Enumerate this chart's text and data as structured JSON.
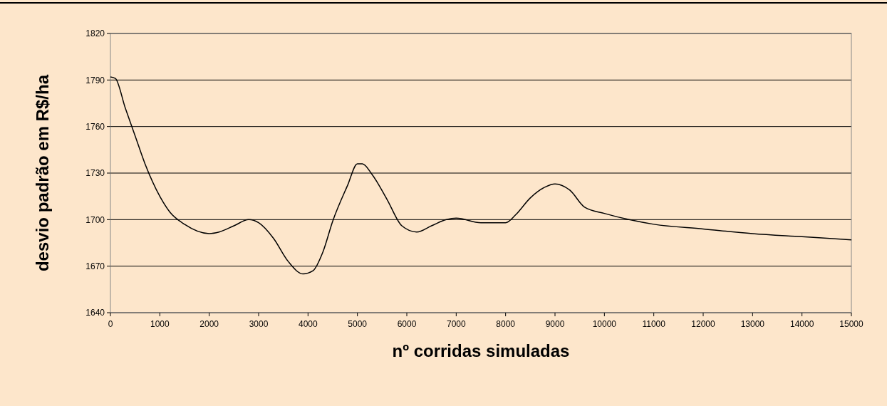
{
  "chart_data": {
    "type": "line",
    "xlabel": "nº corridas simuladas",
    "ylabel": "desvio padrão em R$/ha",
    "x": [
      0,
      100,
      300,
      500,
      700,
      1000,
      1200,
      1500,
      2000,
      2200,
      2500,
      2800,
      3000,
      3300,
      3600,
      3900,
      4100,
      4300,
      4500,
      4800,
      5000,
      5100,
      5300,
      5600,
      5900,
      6200,
      6500,
      6800,
      7000,
      7500,
      8000,
      8200,
      8500,
      8800,
      9000,
      9300,
      9600,
      10000,
      10500,
      11000,
      12000,
      13000,
      14000,
      15000
    ],
    "series": [
      {
        "color": "#000000",
        "values": [
          1792,
          1791,
          1772,
          1754,
          1736,
          1715,
          1705,
          1697,
          1691,
          1692,
          1696,
          1700,
          1698,
          1688,
          1673,
          1665,
          1667,
          1679,
          1699,
          1722,
          1736,
          1736,
          1729,
          1713,
          1696,
          1692,
          1696,
          1700,
          1701,
          1698,
          1698,
          1703,
          1714,
          1721,
          1723,
          1719,
          1708,
          1704,
          1700,
          1697,
          1694,
          1691,
          1689,
          1687
        ]
      }
    ],
    "xlim": [
      0,
      15000
    ],
    "xticks": [
      0,
      1000,
      2000,
      3000,
      4000,
      5000,
      6000,
      7000,
      8000,
      9000,
      10000,
      11000,
      12000,
      13000,
      14000,
      15000
    ],
    "ylim": [
      1640,
      1820
    ],
    "yticks": [
      1640,
      1670,
      1700,
      1730,
      1760,
      1790,
      1820
    ],
    "grid": "y",
    "marker": "none",
    "line_style": "solid"
  }
}
